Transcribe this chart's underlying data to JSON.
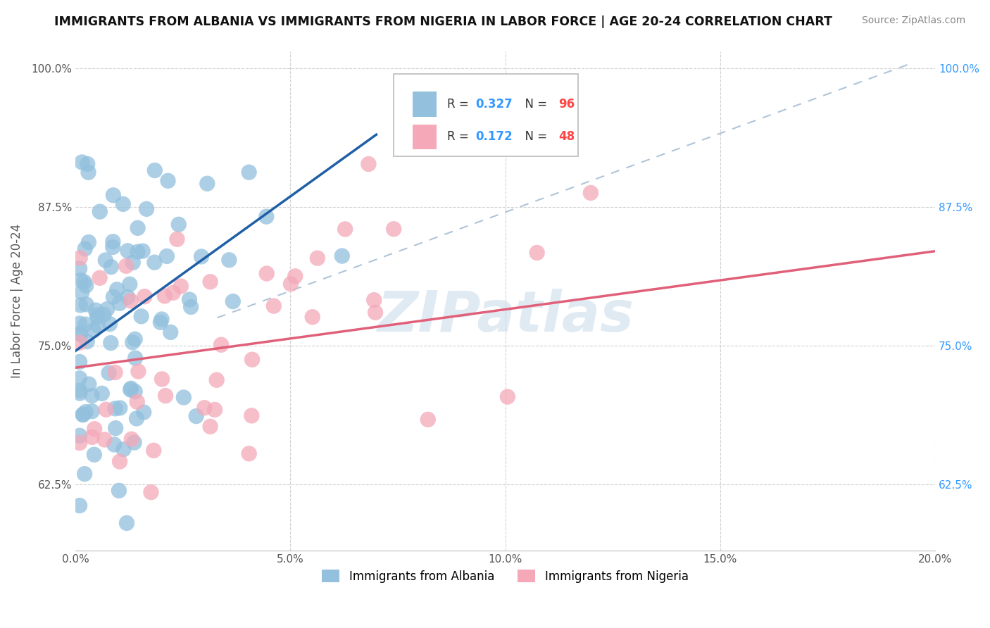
{
  "title": "IMMIGRANTS FROM ALBANIA VS IMMIGRANTS FROM NIGERIA IN LABOR FORCE | AGE 20-24 CORRELATION CHART",
  "source": "Source: ZipAtlas.com",
  "ylabel": "In Labor Force | Age 20-24",
  "legend_albania": "Immigrants from Albania",
  "legend_nigeria": "Immigrants from Nigeria",
  "albania_R": 0.327,
  "albania_N": 96,
  "nigeria_R": 0.172,
  "nigeria_N": 48,
  "xlim": [
    0.0,
    0.2
  ],
  "ylim": [
    0.565,
    1.015
  ],
  "yticks": [
    0.625,
    0.75,
    0.875,
    1.0
  ],
  "ytick_labels": [
    "62.5%",
    "75.0%",
    "87.5%",
    "100.0%"
  ],
  "xticks": [
    0.0,
    0.05,
    0.1,
    0.15,
    0.2
  ],
  "xtick_labels": [
    "0.0%",
    "5.0%",
    "10.0%",
    "15.0%",
    "20.0%"
  ],
  "albania_color": "#92c0dd",
  "nigeria_color": "#f4a8b8",
  "albania_line_color": "#1f5fa6",
  "nigeria_line_color": "#e0607a",
  "ref_line_color": "#b0c4d8",
  "background_color": "#ffffff",
  "grid_color": "#d0d0d0",
  "watermark_color": "#ccdcea",
  "label_color_left": "#555555",
  "label_color_right": "#3399ff",
  "legend_R_color": "#3399ff",
  "legend_N_color": "#ff4444",
  "title_color": "#111111",
  "source_color": "#888888"
}
